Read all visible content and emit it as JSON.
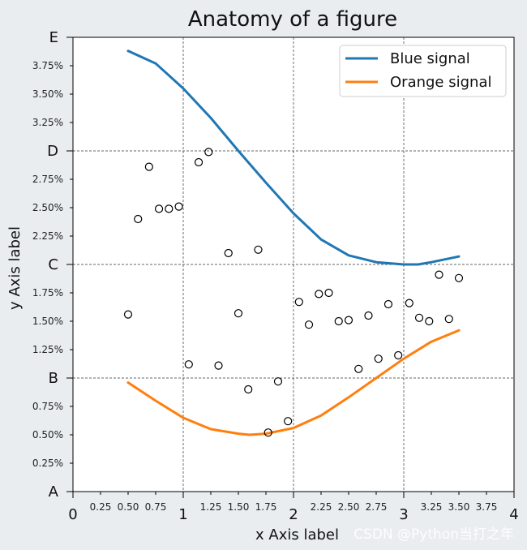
{
  "chart_data": {
    "type": "line",
    "title": "Anatomy of a figure",
    "xlabel": "x Axis label",
    "ylabel": "y Axis label",
    "xlim": [
      0,
      4
    ],
    "ylim": [
      0,
      4
    ],
    "x_major_ticks": [
      {
        "value": 0,
        "label": "0"
      },
      {
        "value": 1,
        "label": "1"
      },
      {
        "value": 2,
        "label": "2"
      },
      {
        "value": 3,
        "label": "3"
      },
      {
        "value": 4,
        "label": "4"
      }
    ],
    "x_minor_ticks": [
      {
        "value": 0.25,
        "label": "0.25"
      },
      {
        "value": 0.5,
        "label": "0.50"
      },
      {
        "value": 0.75,
        "label": "0.75"
      },
      {
        "value": 1.25,
        "label": "1.25"
      },
      {
        "value": 1.5,
        "label": "1.50"
      },
      {
        "value": 1.75,
        "label": "1.75"
      },
      {
        "value": 2.25,
        "label": "2.25"
      },
      {
        "value": 2.5,
        "label": "2.50"
      },
      {
        "value": 2.75,
        "label": "2.75"
      },
      {
        "value": 3.25,
        "label": "3.25"
      },
      {
        "value": 3.5,
        "label": "3.50"
      },
      {
        "value": 3.75,
        "label": "3.75"
      }
    ],
    "y_major_ticks": [
      {
        "value": 0,
        "label": "A"
      },
      {
        "value": 1,
        "label": "B"
      },
      {
        "value": 2,
        "label": "C"
      },
      {
        "value": 3,
        "label": "D"
      },
      {
        "value": 4,
        "label": "E"
      }
    ],
    "y_minor_ticks": [
      {
        "value": 0.25,
        "label": "0.25%"
      },
      {
        "value": 0.5,
        "label": "0.50%"
      },
      {
        "value": 0.75,
        "label": "0.75%"
      },
      {
        "value": 1.25,
        "label": "1.25%"
      },
      {
        "value": 1.5,
        "label": "1.50%"
      },
      {
        "value": 1.75,
        "label": "1.75%"
      },
      {
        "value": 2.25,
        "label": "2.25%"
      },
      {
        "value": 2.5,
        "label": "2.50%"
      },
      {
        "value": 2.75,
        "label": "2.75%"
      },
      {
        "value": 3.25,
        "label": "3.25%"
      },
      {
        "value": 3.5,
        "label": "3.50%"
      },
      {
        "value": 3.75,
        "label": "3.75%"
      }
    ],
    "grid": true,
    "grid_at": "major ticks",
    "legend": "top-right",
    "series": [
      {
        "name": "Blue signal",
        "type": "line",
        "color": "#1f77b4",
        "x": [
          0.5,
          0.75,
          1.0,
          1.25,
          1.5,
          1.75,
          2.0,
          2.25,
          2.5,
          2.75,
          3.0,
          3.13,
          3.25,
          3.5
        ],
        "y": [
          3.88,
          3.77,
          3.55,
          3.29,
          3.0,
          2.72,
          2.45,
          2.22,
          2.08,
          2.02,
          2.0,
          2.0,
          2.02,
          2.07
        ]
      },
      {
        "name": "Orange signal",
        "type": "line",
        "color": "#ff7f0e",
        "x": [
          0.5,
          0.75,
          1.0,
          1.25,
          1.5,
          1.6,
          1.75,
          2.0,
          2.25,
          2.5,
          2.75,
          3.0,
          3.25,
          3.5
        ],
        "y": [
          0.96,
          0.8,
          0.65,
          0.55,
          0.51,
          0.5,
          0.51,
          0.56,
          0.67,
          0.83,
          1.0,
          1.17,
          1.32,
          1.42
        ]
      },
      {
        "type": "scatter",
        "marker": "open-circle",
        "x": [
          0.5,
          0.59,
          0.69,
          0.78,
          0.87,
          0.96,
          1.05,
          1.14,
          1.23,
          1.32,
          1.41,
          1.5,
          1.59,
          1.68,
          1.77,
          1.86,
          1.95,
          2.05,
          2.14,
          2.23,
          2.32,
          2.41,
          2.5,
          2.59,
          2.68,
          2.77,
          2.86,
          2.95,
          3.05,
          3.14,
          3.23,
          3.32,
          3.41,
          3.5
        ],
        "y": [
          1.56,
          2.4,
          2.86,
          2.49,
          2.49,
          2.51,
          1.12,
          2.9,
          2.99,
          1.11,
          2.1,
          1.57,
          0.9,
          2.13,
          0.52,
          0.97,
          0.62,
          1.67,
          1.47,
          1.74,
          1.75,
          1.5,
          1.51,
          1.08,
          1.55,
          1.17,
          1.65,
          1.2,
          1.66,
          1.53,
          1.5,
          1.91,
          1.52,
          1.88
        ]
      }
    ]
  },
  "watermark": "CSDN @Python当打之年"
}
